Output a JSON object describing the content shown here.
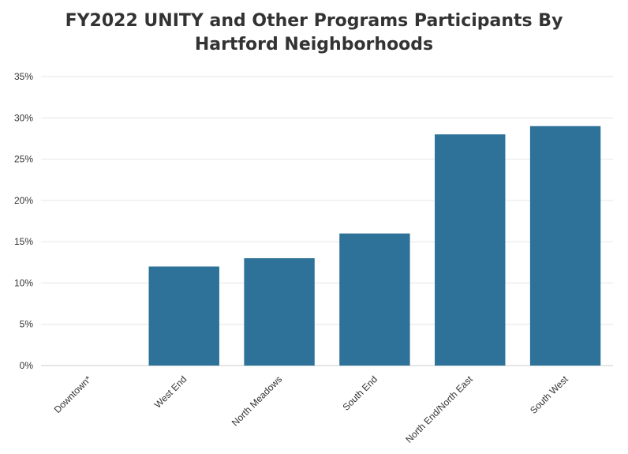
{
  "chart_data": {
    "type": "bar",
    "title": "FY2022 UNITY and Other Programs Participants By Hartford Neighborhoods",
    "xlabel": "",
    "ylabel": "",
    "categories": [
      "Downtown*",
      "West End",
      "North Meadows",
      "South End",
      "North End/North East",
      "South West"
    ],
    "values": [
      0,
      12,
      13,
      16,
      28,
      29
    ],
    "y_unit": "%",
    "ylim": [
      0,
      35
    ],
    "y_ticks": [
      "0%",
      "5%",
      "10%",
      "15%",
      "20%",
      "25%",
      "30%",
      "35%"
    ],
    "grid": true,
    "bar_color": "#2e7299",
    "gridline_color": "#e6e6e6"
  }
}
